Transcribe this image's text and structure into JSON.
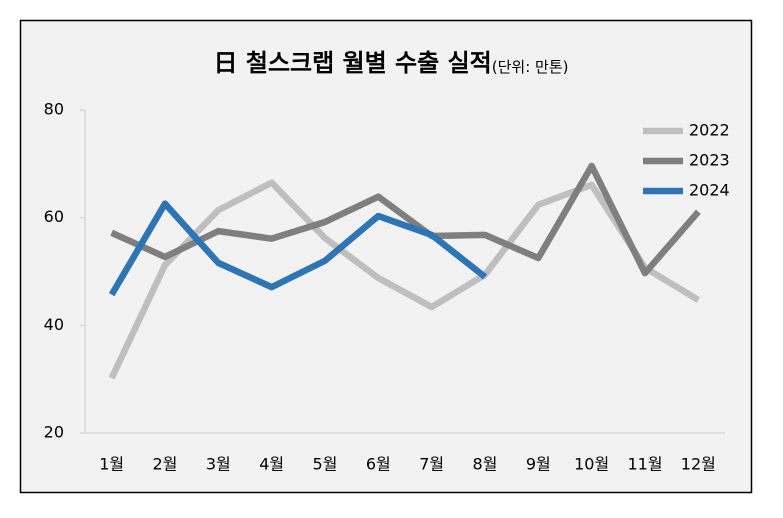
{
  "chart_data": {
    "type": "line",
    "title": "日 철스크랩 월별 수출 실적",
    "subtitle": "(단위: 만톤)",
    "categories": [
      "1월",
      "2월",
      "3월",
      "4월",
      "5월",
      "6월",
      "7월",
      "8월",
      "9월",
      "10월",
      "11월",
      "12월"
    ],
    "series": [
      {
        "name": "2022",
        "color": "#bfbfbf",
        "values": [
          30.2,
          51.2,
          61.4,
          66.5,
          56.2,
          48.8,
          43.4,
          49.4,
          62.4,
          66.1,
          50.7,
          44.7
        ]
      },
      {
        "name": "2023",
        "color": "#7f7f7f",
        "values": [
          57.2,
          52.7,
          57.5,
          56.1,
          59.2,
          63.9,
          56.6,
          56.8,
          52.5,
          69.6,
          49.7,
          61.1
        ]
      },
      {
        "name": "2024",
        "color": "#2e75b6",
        "values": [
          45.7,
          62.6,
          51.6,
          47.1,
          52.0,
          60.3,
          56.8,
          49.0,
          null,
          null,
          null,
          null
        ]
      }
    ],
    "ylim": [
      20,
      80
    ],
    "yticks": [
      20,
      40,
      60,
      80
    ],
    "grid": false,
    "legend": "top-right"
  }
}
